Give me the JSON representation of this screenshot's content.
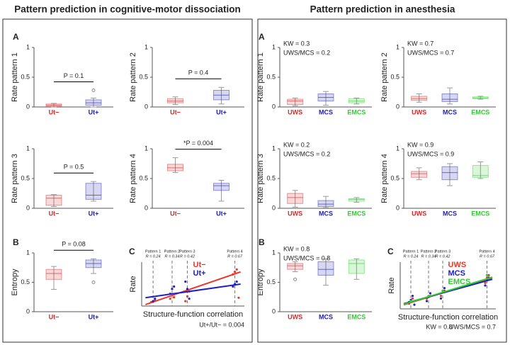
{
  "figure": {
    "titles": [
      "Pattern prediction in cognitive-motor dissociation",
      "Pattern prediction in anesthesia"
    ]
  },
  "chart_data": [
    {
      "type": "box",
      "panel_label": "A",
      "ylabel": "Rate pattern 1",
      "categories": [
        "Ut−",
        "Ut+"
      ],
      "colors": [
        "#d62728",
        "#2020b0"
      ],
      "ylim": [
        0,
        1
      ],
      "yticks": [
        0,
        0.5,
        1
      ],
      "p_value": "P = 0.1",
      "boxes": [
        {
          "min": 0,
          "q1": 0.01,
          "median": 0.03,
          "q3": 0.05,
          "max": 0.06,
          "outliers": []
        },
        {
          "min": 0,
          "q1": 0.03,
          "median": 0.07,
          "q3": 0.12,
          "max": 0.15,
          "outliers": [
            0.28
          ]
        }
      ]
    },
    {
      "type": "box",
      "ylabel": "Rate pattern 2",
      "categories": [
        "Ut−",
        "Ut+"
      ],
      "colors": [
        "#d62728",
        "#2020b0"
      ],
      "ylim": [
        0,
        1
      ],
      "yticks": [
        0,
        0.5,
        1
      ],
      "p_value": "P = 0.4",
      "boxes": [
        {
          "min": 0.04,
          "q1": 0.07,
          "median": 0.1,
          "q3": 0.14,
          "max": 0.17,
          "outliers": []
        },
        {
          "min": 0.05,
          "q1": 0.12,
          "median": 0.2,
          "q3": 0.28,
          "max": 0.33,
          "outliers": []
        }
      ]
    },
    {
      "type": "box",
      "ylabel": "Rate pattern 3",
      "categories": [
        "Ut−",
        "Ut+"
      ],
      "colors": [
        "#d62728",
        "#2020b0"
      ],
      "ylim": [
        0,
        1
      ],
      "yticks": [
        0,
        0.5,
        1
      ],
      "p_value": "P = 0.5",
      "boxes": [
        {
          "min": 0.03,
          "q1": 0.05,
          "median": 0.17,
          "q3": 0.22,
          "max": 0.23,
          "outliers": []
        },
        {
          "min": 0.12,
          "q1": 0.15,
          "median": 0.22,
          "q3": 0.42,
          "max": 0.45,
          "outliers": []
        }
      ]
    },
    {
      "type": "box",
      "ylabel": "Rate pattern 4",
      "categories": [
        "Ut−",
        "Ut+"
      ],
      "colors": [
        "#d62728",
        "#2020b0"
      ],
      "ylim": [
        0,
        1
      ],
      "yticks": [
        0,
        0.5,
        1
      ],
      "p_value": "*P = 0.004",
      "boxes": [
        {
          "min": 0.6,
          "q1": 0.63,
          "median": 0.68,
          "q3": 0.74,
          "max": 0.85,
          "outliers": []
        },
        {
          "min": 0.12,
          "q1": 0.3,
          "median": 0.38,
          "q3": 0.42,
          "max": 0.47,
          "outliers": []
        }
      ]
    },
    {
      "type": "box",
      "panel_label": "B",
      "ylabel": "Entropy",
      "categories": [
        "Ut−",
        "Ut+"
      ],
      "colors": [
        "#d62728",
        "#2020b0"
      ],
      "ylim": [
        0,
        1
      ],
      "yticks": [
        0,
        0.5,
        1
      ],
      "p_value": "P = 0.08",
      "boxes": [
        {
          "min": 0.38,
          "q1": 0.55,
          "median": 0.65,
          "q3": 0.72,
          "max": 0.77,
          "outliers": []
        },
        {
          "min": 0.65,
          "q1": 0.75,
          "median": 0.82,
          "q3": 0.88,
          "max": 0.9,
          "outliers": [
            0.5
          ]
        }
      ]
    },
    {
      "type": "scatter",
      "panel_label": "C",
      "ylabel": "Rate",
      "xlabel": "Structure-function correlation",
      "stats": [
        "Ut+/Ut− = 0.004"
      ],
      "xlim": [
        0.18,
        0.72
      ],
      "ylim": [
        -0.05,
        0.85
      ],
      "patterns": [
        {
          "name": "Pattern 1",
          "r_label": "R = 0.24",
          "value": 0.24
        },
        {
          "name": "Pattern 2",
          "r_label": "R = 0.34",
          "value": 0.34
        },
        {
          "name": "Pattern 3",
          "r_label": "R = 0.42",
          "value": 0.42
        },
        {
          "name": "Pattern 4",
          "r_label": "R = 0.67",
          "value": 0.67
        }
      ],
      "series": [
        {
          "name": "Ut−",
          "color": "#e8372c",
          "x": [
            0.23,
            0.24,
            0.25,
            0.33,
            0.35,
            0.41,
            0.42,
            0.43,
            0.66,
            0.67,
            0.68,
            0.69
          ],
          "values": [
            0.03,
            0.05,
            0.07,
            0.1,
            0.13,
            0.05,
            0.15,
            0.25,
            0.6,
            0.65,
            0.7,
            0.12
          ],
          "fit": {
            "x": [
              0.2,
              0.7
            ],
            "values": [
              -0.02,
              0.65
            ]
          }
        },
        {
          "name": "Ut+",
          "color": "#2020c8",
          "x": [
            0.24,
            0.25,
            0.33,
            0.34,
            0.35,
            0.41,
            0.42,
            0.43,
            0.66,
            0.67,
            0.68
          ],
          "values": [
            0.05,
            0.1,
            0.2,
            0.3,
            0.35,
            0.45,
            0.3,
            0.1,
            0.35,
            0.4,
            0.45
          ],
          "fit": {
            "x": [
              0.2,
              0.7
            ],
            "values": [
              0.12,
              0.4
            ]
          }
        }
      ]
    },
    {
      "type": "box",
      "panel_label": "A",
      "ylabel": "Rate pattern 1",
      "categories": [
        "UWS",
        "MCS",
        "EMCS"
      ],
      "colors": [
        "#d62728",
        "#2020b0",
        "#2ecc2e"
      ],
      "ylim": [
        0,
        1
      ],
      "yticks": [
        0,
        0.5,
        1
      ],
      "stats": [
        "KW = 0.3",
        "UWS/MCS = 0.2"
      ],
      "boxes": [
        {
          "min": 0.02,
          "q1": 0.04,
          "median": 0.1,
          "q3": 0.13,
          "max": 0.15,
          "outliers": []
        },
        {
          "min": 0.03,
          "q1": 0.1,
          "median": 0.16,
          "q3": 0.22,
          "max": 0.26,
          "outliers": []
        },
        {
          "min": 0.05,
          "q1": 0.07,
          "median": 0.1,
          "q3": 0.14,
          "max": 0.15,
          "outliers": []
        }
      ]
    },
    {
      "type": "box",
      "ylabel": "Rate pattern 2",
      "categories": [
        "UWS",
        "MCS",
        "EMCS"
      ],
      "colors": [
        "#d62728",
        "#2020b0",
        "#2ecc2e"
      ],
      "ylim": [
        0,
        1
      ],
      "yticks": [
        0,
        0.5,
        1
      ],
      "stats": [
        "KW = 0.7",
        "UWS/MCS = 0.7"
      ],
      "boxes": [
        {
          "min": 0.08,
          "q1": 0.11,
          "median": 0.14,
          "q3": 0.18,
          "max": 0.22,
          "outliers": []
        },
        {
          "min": 0.05,
          "q1": 0.09,
          "median": 0.13,
          "q3": 0.22,
          "max": 0.32,
          "outliers": []
        },
        {
          "min": 0.13,
          "q1": 0.14,
          "median": 0.15,
          "q3": 0.17,
          "max": 0.18,
          "outliers": []
        }
      ]
    },
    {
      "type": "box",
      "ylabel": "Rate pattern 3",
      "categories": [
        "UWS",
        "MCS",
        "EMCS"
      ],
      "colors": [
        "#d62728",
        "#2020b0",
        "#2ecc2e"
      ],
      "ylim": [
        0,
        1
      ],
      "yticks": [
        0,
        0.5,
        1
      ],
      "stats": [
        "KW = 0.2",
        "UWS/MCS = 0.2"
      ],
      "boxes": [
        {
          "min": 0.02,
          "q1": 0.08,
          "median": 0.18,
          "q3": 0.25,
          "max": 0.3,
          "outliers": []
        },
        {
          "min": 0.01,
          "q1": 0.03,
          "median": 0.07,
          "q3": 0.13,
          "max": 0.2,
          "outliers": []
        },
        {
          "min": 0.1,
          "q1": 0.12,
          "median": 0.15,
          "q3": 0.16,
          "max": 0.18,
          "outliers": []
        }
      ]
    },
    {
      "type": "box",
      "ylabel": "Rate pattern 4",
      "categories": [
        "UWS",
        "MCS",
        "EMCS"
      ],
      "colors": [
        "#d62728",
        "#2020b0",
        "#2ecc2e"
      ],
      "ylim": [
        0,
        1
      ],
      "yticks": [
        0,
        0.5,
        1
      ],
      "stats": [
        "KW = 0.9",
        "UWS/MCS = 0.9"
      ],
      "boxes": [
        {
          "min": 0.48,
          "q1": 0.52,
          "median": 0.58,
          "q3": 0.62,
          "max": 0.68,
          "outliers": []
        },
        {
          "min": 0.38,
          "q1": 0.48,
          "median": 0.6,
          "q3": 0.7,
          "max": 0.75,
          "outliers": []
        },
        {
          "min": 0.5,
          "q1": 0.52,
          "median": 0.55,
          "q3": 0.72,
          "max": 0.78,
          "outliers": []
        }
      ]
    },
    {
      "type": "box",
      "panel_label": "B",
      "ylabel": "Entropy",
      "categories": [
        "UWS",
        "MCS",
        "EMCS"
      ],
      "colors": [
        "#d62728",
        "#2020b0",
        "#2ecc2e"
      ],
      "ylim": [
        0,
        1
      ],
      "yticks": [
        0,
        0.5,
        1
      ],
      "stats": [
        "KW = 0.8",
        "UWS/MCS = 0.8"
      ],
      "boxes": [
        {
          "min": 0.68,
          "q1": 0.72,
          "median": 0.78,
          "q3": 0.82,
          "max": 0.85,
          "outliers": [
            0.55
          ]
        },
        {
          "min": 0.45,
          "q1": 0.62,
          "median": 0.72,
          "q3": 0.85,
          "max": 0.9,
          "outliers": []
        },
        {
          "min": 0.55,
          "q1": 0.65,
          "median": 0.82,
          "q3": 0.88,
          "max": 0.9,
          "outliers": []
        }
      ]
    },
    {
      "type": "scatter",
      "panel_label": "C",
      "ylabel": "Rate",
      "xlabel": "Structure-function correlation",
      "stats": [
        "KW = 0.8",
        "UWS/MCS = 0.7"
      ],
      "xlim": [
        0.18,
        0.72
      ],
      "ylim": [
        -0.05,
        0.85
      ],
      "patterns": [
        {
          "name": "Pattern 1",
          "r_label": "R = 0.24",
          "value": 0.24
        },
        {
          "name": "Pattern 2",
          "r_label": "R = 0.34",
          "value": 0.34
        },
        {
          "name": "Pattern 3",
          "r_label": "R = 0.42",
          "value": 0.42
        },
        {
          "name": "Pattern 4",
          "r_label": "R = 0.67",
          "value": 0.67
        }
      ],
      "series": [
        {
          "name": "UWS",
          "color": "#e8372c",
          "x": [
            0.23,
            0.24,
            0.25,
            0.33,
            0.35,
            0.41,
            0.43,
            0.66,
            0.67,
            0.68
          ],
          "values": [
            0.05,
            0.1,
            0.15,
            0.15,
            0.2,
            0.2,
            0.3,
            0.45,
            0.55,
            0.6
          ],
          "fit": {
            "x": [
              0.2,
              0.7
            ],
            "values": [
              0.03,
              0.55
            ]
          }
        },
        {
          "name": "MCS",
          "color": "#2020c8",
          "x": [
            0.23,
            0.24,
            0.25,
            0.26,
            0.33,
            0.34,
            0.35,
            0.41,
            0.42,
            0.43,
            0.66,
            0.67,
            0.68
          ],
          "values": [
            0.08,
            0.12,
            0.2,
            0.03,
            0.1,
            0.18,
            0.25,
            0.15,
            0.3,
            0.35,
            0.4,
            0.5,
            0.55
          ],
          "fit": {
            "x": [
              0.2,
              0.7
            ],
            "values": [
              0.05,
              0.52
            ]
          }
        },
        {
          "name": "EMCS",
          "color": "#2ecc2e",
          "x": [
            0.24,
            0.34,
            0.42,
            0.67
          ],
          "values": [
            0.1,
            0.2,
            0.3,
            0.6
          ],
          "fit": {
            "x": [
              0.2,
              0.7
            ],
            "values": [
              0.04,
              0.56
            ]
          }
        }
      ]
    }
  ]
}
